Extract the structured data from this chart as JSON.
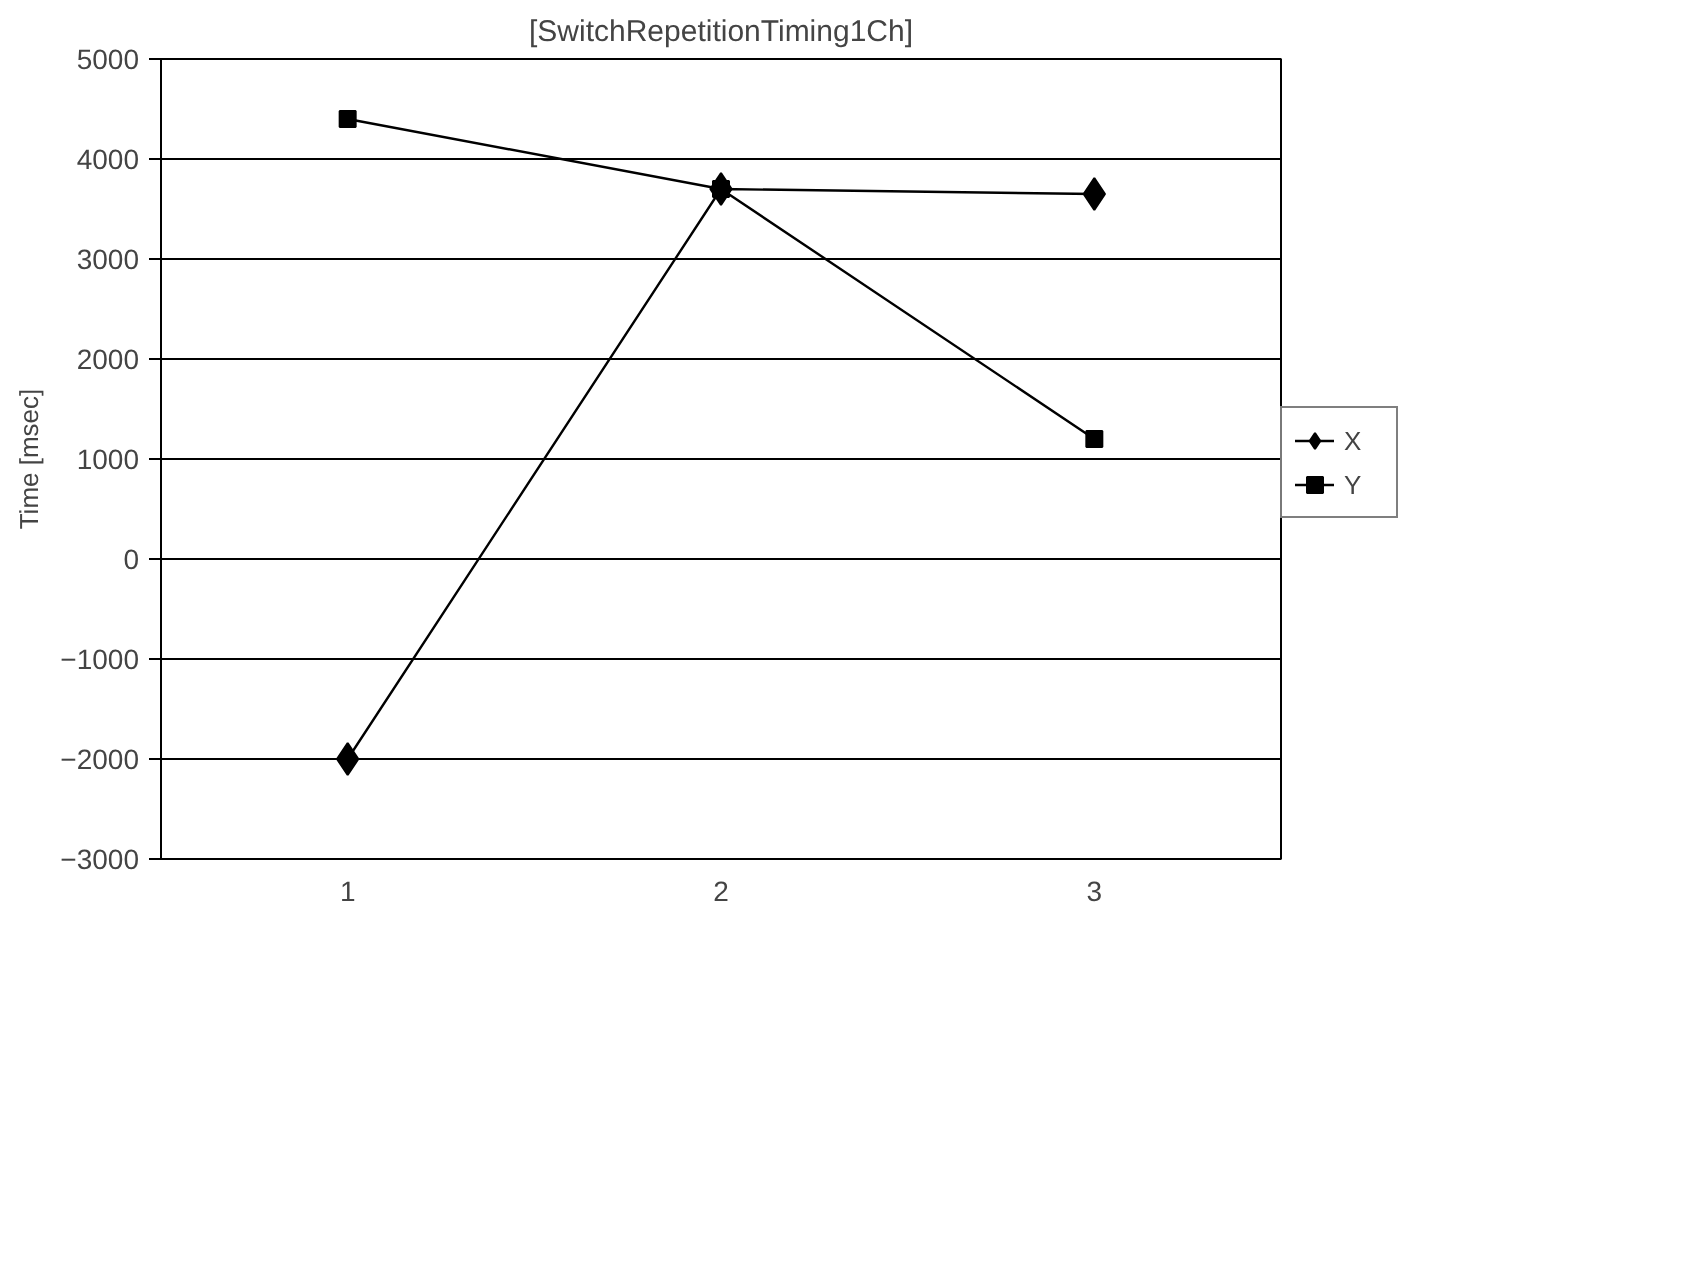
{
  "chart_data": {
    "type": "line",
    "title": "[SwitchRepetitionTiming1Ch]",
    "ylabel": "Time [msec]",
    "categories": [
      "1",
      "2",
      "3"
    ],
    "series": [
      {
        "name": "X",
        "color": "#000000",
        "marker": "diamond",
        "values": [
          -2000,
          3700,
          3650
        ]
      },
      {
        "name": "Y",
        "color": "#000000",
        "marker": "square",
        "values": [
          4400,
          3700,
          1200
        ]
      }
    ],
    "ylim": [
      -3000,
      5000
    ],
    "yticks": [
      -3000,
      -2000,
      -1000,
      0,
      1000,
      2000,
      3000,
      4000,
      5000
    ],
    "grid": "y",
    "legend": "right",
    "line_style": "solid"
  }
}
